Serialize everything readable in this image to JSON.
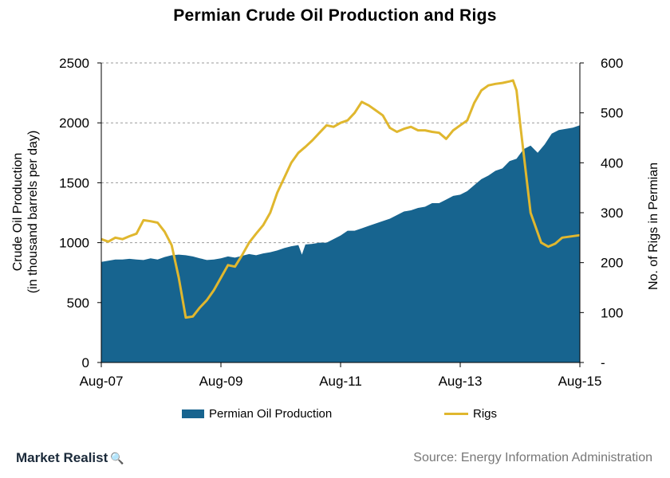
{
  "chart_data": {
    "type": "area+line",
    "title": "Permian Crude Oil Production and Rigs",
    "ylabel_left_line1": "Crude Oil Production",
    "ylabel_left_line2": "(in thousand barrels per day)",
    "ylabel_right": "No. of Rigs in Permian",
    "ylim_left": [
      0,
      2500
    ],
    "ylim_right": [
      0,
      600
    ],
    "yticks_left": [
      "0",
      "500",
      "1000",
      "1500",
      "2000",
      "2500"
    ],
    "yticks_right": [
      "-",
      "100",
      "200",
      "300",
      "400",
      "500",
      "600"
    ],
    "xticks": [
      "Aug-07",
      "Aug-09",
      "Aug-11",
      "Aug-13",
      "Aug-15"
    ],
    "x_range_months": [
      0,
      96
    ],
    "grid": "horizontal dashed",
    "legend_position": "bottom",
    "series": [
      {
        "name": "Permian Oil Production",
        "axis": "left",
        "kind": "area",
        "color": "#17648f",
        "points": [
          [
            0,
            840
          ],
          [
            2,
            850
          ],
          [
            4,
            860
          ],
          [
            6,
            860
          ],
          [
            8,
            865
          ],
          [
            10,
            860
          ],
          [
            12,
            855
          ],
          [
            14,
            870
          ],
          [
            16,
            860
          ],
          [
            18,
            880
          ],
          [
            20,
            895
          ],
          [
            22,
            900
          ],
          [
            24,
            895
          ],
          [
            26,
            885
          ],
          [
            28,
            870
          ],
          [
            30,
            855
          ],
          [
            32,
            860
          ],
          [
            34,
            870
          ],
          [
            36,
            885
          ],
          [
            38,
            875
          ],
          [
            40,
            890
          ],
          [
            42,
            905
          ],
          [
            44,
            895
          ],
          [
            46,
            910
          ],
          [
            48,
            920
          ],
          [
            50,
            935
          ],
          [
            52,
            955
          ],
          [
            54,
            970
          ],
          [
            56,
            980
          ],
          [
            57,
            900
          ],
          [
            58,
            985
          ],
          [
            60,
            990
          ],
          [
            62,
            1000
          ],
          [
            64,
            1000
          ],
          [
            66,
            1030
          ],
          [
            68,
            1060
          ],
          [
            70,
            1100
          ],
          [
            72,
            1100
          ],
          [
            74,
            1120
          ],
          [
            76,
            1140
          ],
          [
            78,
            1160
          ],
          [
            80,
            1180
          ],
          [
            82,
            1200
          ],
          [
            84,
            1230
          ],
          [
            86,
            1260
          ],
          [
            88,
            1270
          ],
          [
            90,
            1290
          ],
          [
            92,
            1300
          ],
          [
            94,
            1330
          ],
          [
            96,
            1330
          ],
          [
            98,
            1360
          ],
          [
            100,
            1390
          ],
          [
            102,
            1400
          ],
          [
            104,
            1430
          ],
          [
            106,
            1480
          ],
          [
            108,
            1530
          ],
          [
            110,
            1560
          ],
          [
            112,
            1600
          ],
          [
            114,
            1620
          ],
          [
            116,
            1680
          ],
          [
            118,
            1700
          ],
          [
            120,
            1780
          ],
          [
            122,
            1810
          ],
          [
            124,
            1750
          ],
          [
            126,
            1820
          ],
          [
            128,
            1910
          ],
          [
            130,
            1940
          ],
          [
            132,
            1950
          ],
          [
            134,
            1960
          ],
          [
            136,
            1980
          ]
        ]
      },
      {
        "name": "Rigs",
        "axis": "right",
        "kind": "line",
        "color": "#e0b72e",
        "points": [
          [
            0,
            247
          ],
          [
            2,
            242
          ],
          [
            4,
            250
          ],
          [
            6,
            247
          ],
          [
            8,
            253
          ],
          [
            10,
            258
          ],
          [
            12,
            285
          ],
          [
            14,
            283
          ],
          [
            16,
            280
          ],
          [
            18,
            262
          ],
          [
            20,
            235
          ],
          [
            22,
            170
          ],
          [
            24,
            90
          ],
          [
            26,
            92
          ],
          [
            28,
            110
          ],
          [
            30,
            125
          ],
          [
            32,
            145
          ],
          [
            34,
            170
          ],
          [
            36,
            195
          ],
          [
            38,
            192
          ],
          [
            40,
            215
          ],
          [
            42,
            240
          ],
          [
            44,
            258
          ],
          [
            46,
            275
          ],
          [
            48,
            300
          ],
          [
            50,
            340
          ],
          [
            52,
            370
          ],
          [
            54,
            400
          ],
          [
            56,
            420
          ],
          [
            58,
            432
          ],
          [
            60,
            445
          ],
          [
            62,
            460
          ],
          [
            64,
            475
          ],
          [
            66,
            472
          ],
          [
            68,
            480
          ],
          [
            70,
            485
          ],
          [
            72,
            500
          ],
          [
            74,
            522
          ],
          [
            76,
            515
          ],
          [
            78,
            505
          ],
          [
            80,
            495
          ],
          [
            82,
            470
          ],
          [
            84,
            462
          ],
          [
            86,
            468
          ],
          [
            88,
            472
          ],
          [
            90,
            465
          ],
          [
            92,
            465
          ],
          [
            94,
            462
          ],
          [
            96,
            460
          ],
          [
            98,
            448
          ],
          [
            100,
            465
          ],
          [
            102,
            475
          ],
          [
            104,
            485
          ],
          [
            106,
            520
          ],
          [
            108,
            545
          ],
          [
            110,
            555
          ],
          [
            112,
            558
          ],
          [
            114,
            560
          ],
          [
            116,
            563
          ],
          [
            117,
            565
          ],
          [
            118,
            545
          ],
          [
            119,
            480
          ],
          [
            120,
            420
          ],
          [
            121,
            360
          ],
          [
            122,
            300
          ],
          [
            124,
            260
          ],
          [
            125,
            240
          ],
          [
            127,
            232
          ],
          [
            129,
            238
          ],
          [
            131,
            250
          ],
          [
            136,
            255
          ]
        ]
      }
    ]
  },
  "legend": {
    "production_label": "Permian Oil Production",
    "rigs_label": "Rigs"
  },
  "footer": {
    "brand": "Market Realist",
    "source": "Source: Energy Information Administration"
  }
}
